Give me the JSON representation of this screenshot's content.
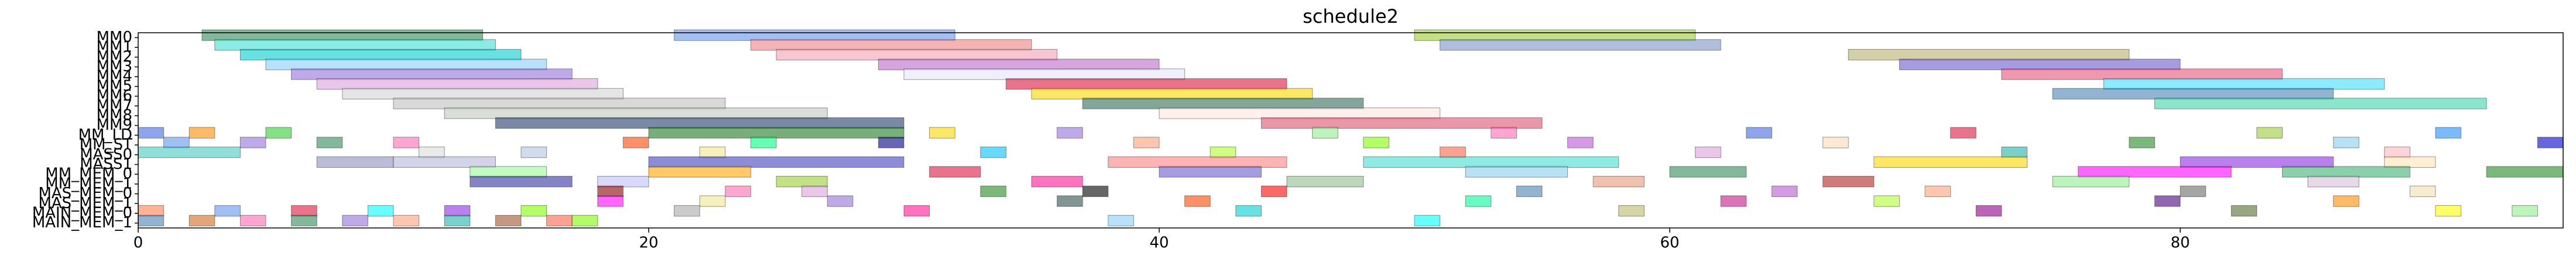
{
  "chart_data": {
    "type": "gantt",
    "title": "schedule2",
    "xlim": [
      0,
      95
    ],
    "xticks": [
      0,
      20,
      40,
      60,
      80
    ],
    "rows": [
      {
        "name": "MM0",
        "tasks": [
          [
            2.5,
            13.5,
            "#2e8b57"
          ],
          [
            21,
            32,
            "#6495ed"
          ],
          [
            50,
            61,
            "#9acd32"
          ]
        ]
      },
      {
        "name": "MM1",
        "tasks": [
          [
            3,
            14,
            "#40e0d0"
          ],
          [
            24,
            35,
            "#f08080"
          ],
          [
            51,
            62,
            "#7b93c8"
          ]
        ]
      },
      {
        "name": "MM2",
        "tasks": [
          [
            4,
            15,
            "#00ced1"
          ],
          [
            25,
            36,
            "#f4a0b0"
          ],
          [
            67,
            78,
            "#b5b06a"
          ]
        ]
      },
      {
        "name": "MM3",
        "tasks": [
          [
            5,
            16,
            "#87cefa"
          ],
          [
            29,
            40,
            "#ba68c8"
          ],
          [
            69,
            80,
            "#6a5acd"
          ]
        ]
      },
      {
        "name": "MM4",
        "tasks": [
          [
            6,
            17,
            "#9370db"
          ],
          [
            30,
            41,
            "#e6e6fa"
          ],
          [
            73,
            84,
            "#e7547a"
          ]
        ]
      },
      {
        "name": "MM5",
        "tasks": [
          [
            7,
            18,
            "#dda0dd"
          ],
          [
            34,
            45,
            "#dc143c"
          ],
          [
            77,
            88,
            "#40e0ff"
          ]
        ]
      },
      {
        "name": "MM6",
        "tasks": [
          [
            8,
            19,
            "#d3d3d3"
          ],
          [
            35,
            46,
            "#ffd700"
          ],
          [
            75,
            86,
            "#4682b4"
          ]
        ]
      },
      {
        "name": "MM7",
        "tasks": [
          [
            10,
            23,
            "#c0c0c0"
          ],
          [
            37,
            48,
            "#2e6b57"
          ],
          [
            79,
            92,
            "#3cd6a8"
          ]
        ]
      },
      {
        "name": "MM8",
        "tasks": [
          [
            12,
            27,
            "#c0c8c0"
          ],
          [
            40,
            51,
            "#ffe4e1"
          ]
        ]
      },
      {
        "name": "MM9",
        "tasks": [
          [
            14,
            30,
            "#1f3a6b"
          ],
          [
            44,
            55,
            "#e05070"
          ]
        ]
      },
      {
        "name": "MM_LD",
        "tasks": [
          [
            20,
            30,
            "#1e7a1e"
          ],
          [
            0,
            1,
            "#4169e1"
          ],
          [
            2,
            3,
            "#ff8c00"
          ],
          [
            5,
            6,
            "#32cd32"
          ],
          [
            31,
            32,
            "#ffd700"
          ],
          [
            36,
            37,
            "#9370db"
          ],
          [
            46,
            47,
            "#90ee90"
          ],
          [
            53,
            54,
            "#ff69b4"
          ],
          [
            63,
            64,
            "#4169e1"
          ],
          [
            71,
            72,
            "#dc143c"
          ],
          [
            83,
            84,
            "#9acd32"
          ],
          [
            90,
            91,
            "#1e90ff"
          ]
        ]
      },
      {
        "name": "MM_ST",
        "tasks": [
          [
            1,
            2,
            "#6495ed"
          ],
          [
            4,
            5,
            "#9370db"
          ],
          [
            7,
            8,
            "#2e8b57"
          ],
          [
            10,
            11,
            "#ff69b4"
          ],
          [
            19,
            20,
            "#ff4500"
          ],
          [
            24,
            25,
            "#00ff7f"
          ],
          [
            29,
            30,
            "#000080"
          ],
          [
            39,
            40,
            "#ffa07a"
          ],
          [
            48,
            49,
            "#7fff00"
          ],
          [
            56,
            57,
            "#ba55d3"
          ],
          [
            66,
            67,
            "#ffdab9"
          ],
          [
            78,
            79,
            "#228b22"
          ],
          [
            86,
            87,
            "#87ceeb"
          ],
          [
            94,
            95,
            "#0000cd"
          ]
        ]
      },
      {
        "name": "MASS0",
        "tasks": [
          [
            0,
            4,
            "#48c9c0"
          ],
          [
            11,
            12,
            "#dcdcdc"
          ],
          [
            15,
            16,
            "#b0c4de"
          ],
          [
            22,
            23,
            "#f0e68c"
          ],
          [
            33,
            34,
            "#00bfff"
          ],
          [
            42,
            43,
            "#adff2f"
          ],
          [
            51,
            52,
            "#ff6347"
          ],
          [
            61,
            62,
            "#dda0dd"
          ],
          [
            73,
            74,
            "#20b2aa"
          ],
          [
            88,
            89,
            "#ffb6c1"
          ]
        ]
      },
      {
        "name": "MASS1",
        "tasks": [
          [
            7,
            10,
            "#9090c0"
          ],
          [
            10,
            14,
            "#b8b8d8"
          ],
          [
            20,
            30,
            "#4040c0"
          ],
          [
            38,
            45,
            "#ff8080"
          ],
          [
            48,
            58,
            "#40e0d0"
          ],
          [
            68,
            74,
            "#ffd700"
          ],
          [
            80,
            86,
            "#8a2be2"
          ],
          [
            88,
            90,
            "#ffe4b5"
          ]
        ]
      },
      {
        "name": "MM_MEM_0",
        "tasks": [
          [
            13,
            16,
            "#98fb98"
          ],
          [
            20,
            24,
            "#ffa500"
          ],
          [
            31,
            33,
            "#dc143c"
          ],
          [
            40,
            44,
            "#6a5acd"
          ],
          [
            52,
            56,
            "#87ceeb"
          ],
          [
            60,
            63,
            "#2e8b57"
          ],
          [
            76,
            82,
            "#ff00ff"
          ],
          [
            84,
            89,
            "#3cb371"
          ],
          [
            92,
            95,
            "#228b22"
          ]
        ]
      },
      {
        "name": "MM_MEM_1",
        "tasks": [
          [
            13,
            17,
            "#3030a0"
          ],
          [
            18,
            20,
            "#c0c0ff"
          ],
          [
            25,
            27,
            "#9acd32"
          ],
          [
            35,
            37,
            "#ff1493"
          ],
          [
            45,
            48,
            "#8fbc8f"
          ],
          [
            57,
            59,
            "#e9967a"
          ],
          [
            66,
            68,
            "#b22222"
          ],
          [
            75,
            78,
            "#90ee90"
          ],
          [
            85,
            87,
            "#d8bfd8"
          ]
        ]
      },
      {
        "name": "MAS_MEM_0",
        "tasks": [
          [
            18,
            19,
            "#8b0000"
          ],
          [
            23,
            24,
            "#ff69b4"
          ],
          [
            26,
            27,
            "#dda0dd"
          ],
          [
            33,
            34,
            "#228b22"
          ],
          [
            37,
            38,
            "#000000"
          ],
          [
            44,
            45,
            "#ff0000"
          ],
          [
            54,
            55,
            "#4682b4"
          ],
          [
            64,
            65,
            "#ba55d3"
          ],
          [
            70,
            71,
            "#ffa07a"
          ],
          [
            80,
            81,
            "#696969"
          ],
          [
            89,
            90,
            "#f5deb3"
          ]
        ]
      },
      {
        "name": "MAS_MEM_1",
        "tasks": [
          [
            18,
            19,
            "#ff00ff"
          ],
          [
            22,
            23,
            "#f0e68c"
          ],
          [
            27,
            28,
            "#9370db"
          ],
          [
            36,
            37,
            "#2f4f4f"
          ],
          [
            41,
            42,
            "#ff4500"
          ],
          [
            52,
            53,
            "#00fa9a"
          ],
          [
            62,
            63,
            "#c71585"
          ],
          [
            68,
            69,
            "#adff2f"
          ],
          [
            79,
            80,
            "#4b0082"
          ],
          [
            86,
            87,
            "#ff8c00"
          ]
        ]
      },
      {
        "name": "MAIN_MEM_0",
        "tasks": [
          [
            0,
            1,
            "#ff7f50"
          ],
          [
            3,
            4,
            "#6495ed"
          ],
          [
            6,
            7,
            "#dc143c"
          ],
          [
            9,
            10,
            "#00ffff"
          ],
          [
            12,
            13,
            "#8a2be2"
          ],
          [
            15,
            16,
            "#7fff00"
          ],
          [
            21,
            22,
            "#a9a9a9"
          ],
          [
            30,
            31,
            "#ff1493"
          ],
          [
            43,
            44,
            "#00ced1"
          ],
          [
            58,
            59,
            "#bdb76b"
          ],
          [
            72,
            73,
            "#8b008b"
          ],
          [
            82,
            83,
            "#556b2f"
          ],
          [
            90,
            91,
            "#ffff00"
          ],
          [
            93,
            94,
            "#90ee90"
          ]
        ]
      },
      {
        "name": "MAIN_MEM_1",
        "tasks": [
          [
            0,
            1,
            "#4682b4"
          ],
          [
            2,
            3,
            "#d2691e"
          ],
          [
            4,
            5,
            "#ff69b4"
          ],
          [
            6,
            7,
            "#2e8b57"
          ],
          [
            8,
            9,
            "#9370db"
          ],
          [
            10,
            11,
            "#ffa07a"
          ],
          [
            12,
            13,
            "#20b2aa"
          ],
          [
            14,
            15,
            "#a0522d"
          ],
          [
            16,
            17,
            "#ff6347"
          ],
          [
            17,
            18,
            "#7cfc00"
          ],
          [
            38,
            39,
            "#87cefa"
          ],
          [
            50,
            51,
            "#00ffff"
          ]
        ]
      }
    ]
  }
}
